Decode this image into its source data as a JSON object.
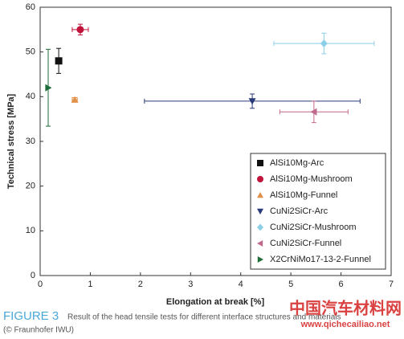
{
  "chart_data": {
    "type": "scatter",
    "xlabel": "Elongation at break [%]",
    "ylabel": "Technical stress [MPa]",
    "xlim": [
      0,
      7
    ],
    "ylim": [
      0,
      60
    ],
    "xticks": [
      0,
      1,
      2,
      3,
      4,
      5,
      6,
      7
    ],
    "yticks": [
      0,
      10,
      20,
      30,
      40,
      50,
      60
    ],
    "legend": "lower right",
    "series": [
      {
        "name": "AlSi10Mg-Arc",
        "color": "#111111",
        "marker": "square",
        "x": [
          0.37
        ],
        "values": [
          48
        ],
        "xerr": [
          0.03
        ],
        "yerr": [
          2.8
        ]
      },
      {
        "name": "AlSi10Mg-Mushroom",
        "color": "#c0143c",
        "marker": "circle",
        "x": [
          0.8
        ],
        "values": [
          55
        ],
        "xerr": [
          0.16
        ],
        "yerr": [
          1.2
        ]
      },
      {
        "name": "AlSi10Mg-Funnel",
        "color": "#e0904a",
        "marker": "triangle-up",
        "x": [
          0.69
        ],
        "values": [
          39.3
        ],
        "xerr": [
          0.05
        ],
        "yerr": [
          0.5
        ]
      },
      {
        "name": "CuNi2SiCr-Arc",
        "color": "#283a78",
        "marker": "triangle-down",
        "x": [
          4.23
        ],
        "values": [
          39
        ],
        "xerr": [
          2.15
        ],
        "yerr": [
          1.6
        ]
      },
      {
        "name": "CuNi2SiCr-Mushroom",
        "color": "#8ccfe8",
        "marker": "diamond",
        "x": [
          5.66
        ],
        "values": [
          51.9
        ],
        "xerr": [
          1.0
        ],
        "yerr": [
          2.3
        ]
      },
      {
        "name": "CuNi2SiCr-Funnel",
        "color": "#c06a8c",
        "marker": "triangle-left",
        "x": [
          5.46
        ],
        "values": [
          36.6
        ],
        "xerr": [
          0.68
        ],
        "yerr": [
          2.4
        ]
      },
      {
        "name": "X2CrNiMo17-13-2-Funnel",
        "color": "#1f6e3a",
        "marker": "triangle-right",
        "x": [
          0.16
        ],
        "values": [
          42
        ],
        "xerr": [
          0
        ],
        "yerr": [
          8.6
        ]
      }
    ]
  },
  "caption": {
    "label": "FIGURE 3",
    "text": "Result of the head tensile tests for different interface structures and materials",
    "credit": "(© Fraunhofer IWU)"
  },
  "watermark": {
    "title": "中国汽车材料网",
    "url": "www.qichecailiao.net"
  }
}
